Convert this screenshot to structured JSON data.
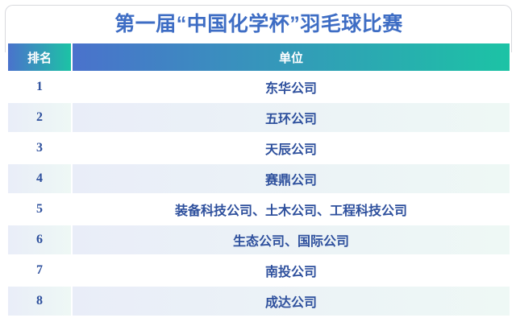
{
  "title": "第一届“中国化学杯”羽毛球比赛",
  "colors": {
    "title_text": "#3e6dc4",
    "header_gradient_start": "#4a72cc",
    "header_gradient_end": "#1cc3a5",
    "body_text": "#2e509d",
    "even_row_start": "#e9edf8",
    "even_row_end": "#eef8f5",
    "card_border": "#d8d9dd",
    "row_white": "#ffffff"
  },
  "chart_data": {
    "type": "table",
    "title": "第一届“中国化学杯”羽毛球比赛",
    "columns": [
      "排名",
      "单位"
    ],
    "rows": [
      [
        "1",
        "东华公司"
      ],
      [
        "2",
        "五环公司"
      ],
      [
        "3",
        "天辰公司"
      ],
      [
        "4",
        "赛鼎公司"
      ],
      [
        "5",
        "装备科技公司、土木公司、工程科技公司"
      ],
      [
        "6",
        "生态公司、国际公司"
      ],
      [
        "7",
        "南投公司"
      ],
      [
        "8",
        "成达公司"
      ]
    ]
  },
  "table": {
    "columns": [
      {
        "key": "rank",
        "label": "排名"
      },
      {
        "key": "unit",
        "label": "单位"
      }
    ],
    "rows": [
      {
        "rank": "1",
        "unit": "东华公司"
      },
      {
        "rank": "2",
        "unit": "五环公司"
      },
      {
        "rank": "3",
        "unit": "天辰公司"
      },
      {
        "rank": "4",
        "unit": "赛鼎公司"
      },
      {
        "rank": "5",
        "unit": "装备科技公司、土木公司、工程科技公司"
      },
      {
        "rank": "6",
        "unit": "生态公司、国际公司"
      },
      {
        "rank": "7",
        "unit": "南投公司"
      },
      {
        "rank": "8",
        "unit": "成达公司"
      }
    ]
  }
}
